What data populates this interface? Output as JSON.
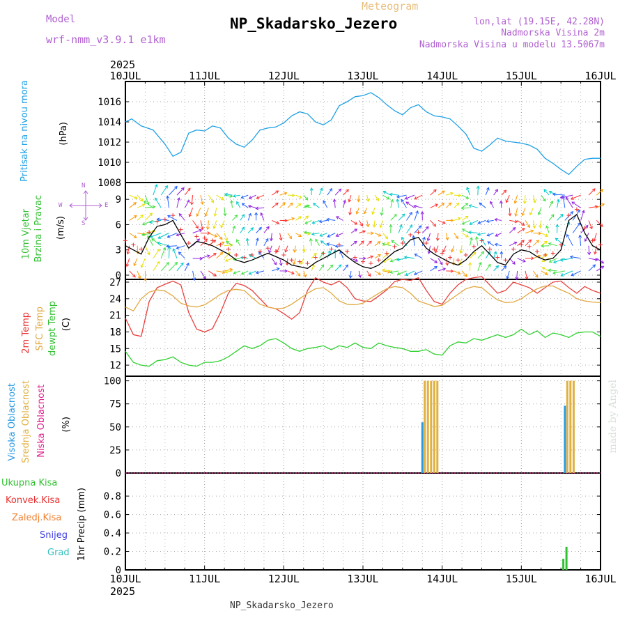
{
  "header": {
    "model_label": "Model",
    "model_name": "wrf-nmm_v3.9.1 e1km",
    "meteogram_label": "Meteogram",
    "station": "NP_Skadarsko_Jezero",
    "lonlat": "lon,lat (19.15E, 42.28N)",
    "elevation": "Nadmorska Visina 2m",
    "model_elevation": "Nadmorska Visina u modelu 13.5067m",
    "year_top": "2025",
    "year_bottom": "2025",
    "footer_station": "NP_Skadarsko_Jezero",
    "credit": "made by Angel"
  },
  "colors": {
    "pressure": "#1ea0e6",
    "temp2m": "#e8403c",
    "sfc_temp": "#e0a840",
    "dewpt": "#30d030",
    "high_cloud": "#2a9ae0",
    "mid_cloud": "#e0b040",
    "low_cloud": "#e02090",
    "total_precip": "#30c030",
    "conv_precip": "#e83030",
    "ice_precip": "#f08030",
    "snow": "#4040e0",
    "hail": "#30c0c0",
    "wind_speed": "#000000",
    "wind_gust_marker": "#e83030"
  },
  "panel_labels": {
    "pressure": {
      "title": "Pritisak na nivou mora",
      "unit": "(hPa)"
    },
    "wind": {
      "title1": "10m Vjetar",
      "title2": "Brzina i Pravac",
      "unit": "(m/s)",
      "compass": [
        "W",
        "N",
        "E",
        "S"
      ]
    },
    "temp": {
      "title1": "2m Temp",
      "title2": "SFC Temp",
      "title3": "dewpt Temp",
      "unit": "(C)"
    },
    "cloud": {
      "title1": "Visoka Oblacnost",
      "title2": "Srednja Oblacnost",
      "title3": "Niska Oblacnost",
      "unit": "(%)"
    },
    "precip": {
      "legend": [
        "Ukupna Kisa",
        "Konvek.Kisa",
        "Zaledj.Kisa",
        "Snijeg",
        "Grad"
      ],
      "unit": "1hr Precip (mm)"
    }
  },
  "chart_data": [
    {
      "type": "line",
      "name": "pressure",
      "x_tick_labels": [
        "10JUL",
        "11JUL",
        "12JUL",
        "13JUL",
        "14JUL",
        "15JUL",
        "16JUL"
      ],
      "x_range_days": [
        0,
        6
      ],
      "ylim": [
        1008,
        1018
      ],
      "y_ticks": [
        1008,
        1010,
        1012,
        1014,
        1016
      ],
      "x": [
        0,
        0.08,
        0.2,
        0.35,
        0.5,
        0.6,
        0.7,
        0.8,
        0.9,
        1.0,
        1.1,
        1.2,
        1.3,
        1.4,
        1.5,
        1.6,
        1.7,
        1.8,
        1.9,
        2.0,
        2.1,
        2.2,
        2.3,
        2.4,
        2.5,
        2.6,
        2.7,
        2.8,
        2.9,
        3.0,
        3.1,
        3.2,
        3.3,
        3.4,
        3.5,
        3.6,
        3.7,
        3.8,
        3.9,
        4.0,
        4.1,
        4.2,
        4.3,
        4.4,
        4.5,
        4.6,
        4.7,
        4.8,
        4.9,
        5.0,
        5.1,
        5.2,
        5.3,
        5.4,
        5.5,
        5.6,
        5.7,
        5.8,
        5.9,
        6.0
      ],
      "y": [
        1014.0,
        1014.3,
        1013.6,
        1013.2,
        1011.8,
        1010.6,
        1011.0,
        1012.9,
        1013.2,
        1013.1,
        1013.6,
        1013.4,
        1012.4,
        1011.8,
        1011.5,
        1012.2,
        1013.2,
        1013.4,
        1013.5,
        1013.9,
        1014.6,
        1015.0,
        1014.8,
        1014.0,
        1013.7,
        1014.2,
        1015.6,
        1016.0,
        1016.5,
        1016.6,
        1016.9,
        1016.4,
        1015.7,
        1015.1,
        1014.7,
        1015.4,
        1015.7,
        1015.0,
        1014.6,
        1014.5,
        1014.3,
        1013.6,
        1012.8,
        1011.4,
        1011.1,
        1011.7,
        1012.4,
        1012.1,
        1012.0,
        1011.9,
        1011.7,
        1011.3,
        1010.4,
        1009.9,
        1009.3,
        1008.8,
        1009.6,
        1010.3,
        1010.4,
        1010.4
      ]
    },
    {
      "type": "line",
      "name": "wind",
      "ylim": [
        -0.5,
        11
      ],
      "y_ticks": [
        0,
        3,
        6,
        9
      ],
      "x": [
        0,
        0.1,
        0.2,
        0.3,
        0.4,
        0.5,
        0.6,
        0.7,
        0.8,
        0.9,
        1.0,
        1.1,
        1.2,
        1.3,
        1.4,
        1.5,
        1.6,
        1.7,
        1.8,
        1.9,
        2.0,
        2.1,
        2.2,
        2.3,
        2.4,
        2.5,
        2.6,
        2.7,
        2.8,
        2.9,
        3.0,
        3.1,
        3.2,
        3.3,
        3.4,
        3.5,
        3.6,
        3.7,
        3.8,
        3.9,
        4.0,
        4.1,
        4.2,
        4.3,
        4.4,
        4.5,
        4.6,
        4.7,
        4.8,
        4.9,
        5.0,
        5.1,
        5.2,
        5.3,
        5.4,
        5.5,
        5.6,
        5.7,
        5.8,
        5.9,
        6.0
      ],
      "y": [
        3.5,
        3.0,
        2.5,
        4.5,
        5.8,
        6.0,
        6.5,
        4.8,
        3.2,
        4.0,
        3.8,
        3.5,
        3.0,
        2.5,
        1.8,
        1.5,
        1.8,
        2.2,
        2.6,
        2.2,
        1.8,
        1.2,
        1.0,
        0.8,
        1.5,
        2.0,
        2.5,
        3.0,
        2.2,
        1.5,
        1.0,
        0.8,
        1.2,
        2.0,
        2.8,
        3.2,
        4.2,
        4.5,
        3.2,
        2.5,
        2.0,
        1.5,
        1.2,
        1.8,
        2.8,
        3.5,
        2.5,
        1.5,
        1.2,
        2.5,
        3.0,
        2.8,
        2.2,
        1.8,
        2.0,
        3.0,
        6.5,
        7.2,
        5.0,
        3.5,
        3.0
      ]
    },
    {
      "type": "line",
      "name": "temperature",
      "ylim": [
        10,
        27.5
      ],
      "y_ticks": [
        12,
        15,
        18,
        21,
        24,
        27
      ],
      "x": [
        0,
        0.1,
        0.2,
        0.3,
        0.4,
        0.5,
        0.6,
        0.7,
        0.8,
        0.9,
        1.0,
        1.1,
        1.2,
        1.3,
        1.4,
        1.5,
        1.6,
        1.7,
        1.8,
        1.9,
        2.0,
        2.1,
        2.2,
        2.3,
        2.4,
        2.5,
        2.6,
        2.7,
        2.8,
        2.9,
        3.0,
        3.1,
        3.2,
        3.3,
        3.4,
        3.5,
        3.6,
        3.7,
        3.8,
        3.9,
        4.0,
        4.1,
        4.2,
        4.3,
        4.4,
        4.5,
        4.6,
        4.7,
        4.8,
        4.9,
        5.0,
        5.1,
        5.2,
        5.3,
        5.4,
        5.5,
        5.6,
        5.7,
        5.8,
        5.9,
        6.0
      ],
      "series": [
        {
          "name": "2m Temp",
          "values": [
            20.5,
            17.5,
            17.2,
            23.5,
            26.0,
            26.6,
            27.2,
            26.5,
            21.5,
            18.5,
            18.0,
            18.6,
            21.5,
            25.0,
            26.8,
            26.4,
            25.5,
            24.0,
            22.5,
            22.2,
            21.3,
            20.3,
            21.5,
            25.5,
            27.8,
            27.0,
            26.5,
            27.2,
            26.0,
            24.0,
            23.6,
            23.5,
            24.5,
            25.6,
            27.1,
            27.5,
            27.3,
            27.8,
            25.5,
            23.5,
            23.0,
            25.0,
            26.5,
            27.5,
            27.8,
            28.0,
            26.5,
            25.0,
            25.5,
            27.0,
            26.5,
            26.0,
            25.0,
            26.0,
            27.0,
            27.2,
            26.0,
            25.0,
            26.2,
            25.5,
            25.0
          ]
        },
        {
          "name": "SFC Temp",
          "values": [
            22.5,
            21.8,
            24.0,
            25.2,
            25.6,
            25.4,
            24.5,
            23.2,
            22.7,
            22.5,
            22.9,
            23.8,
            24.8,
            25.5,
            25.7,
            25.5,
            24.2,
            23.0,
            22.5,
            22.2,
            22.3,
            23.0,
            24.0,
            25.0,
            25.8,
            26.0,
            25.0,
            23.6,
            23.0,
            22.9,
            23.2,
            24.1,
            25.0,
            25.8,
            26.2,
            26.0,
            25.0,
            23.6,
            23.1,
            22.6,
            22.8,
            23.8,
            24.8,
            25.8,
            26.2,
            26.0,
            24.8,
            23.8,
            23.3,
            23.4,
            24.0,
            25.0,
            25.8,
            26.3,
            26.3,
            25.6,
            25.0,
            24.0,
            23.6,
            23.4,
            23.3
          ]
        },
        {
          "name": "dewpt Temp",
          "values": [
            14.5,
            12.5,
            12.0,
            11.8,
            12.8,
            13.0,
            13.5,
            12.5,
            12.0,
            11.8,
            12.5,
            12.5,
            12.8,
            13.5,
            14.5,
            15.5,
            15.0,
            15.5,
            16.5,
            16.8,
            16.0,
            15.0,
            14.5,
            15.0,
            15.2,
            15.5,
            14.8,
            15.5,
            15.2,
            16.0,
            15.2,
            15.0,
            16.0,
            15.5,
            15.2,
            15.0,
            14.5,
            14.5,
            14.8,
            14.0,
            13.8,
            15.5,
            16.2,
            16.0,
            16.8,
            16.5,
            17.0,
            17.5,
            17.0,
            17.5,
            18.5,
            17.5,
            18.2,
            17.0,
            17.8,
            17.5,
            17.0,
            17.8,
            18.0,
            18.0,
            17.2
          ]
        }
      ]
    },
    {
      "type": "bar",
      "name": "cloud",
      "ylim": [
        0,
        105
      ],
      "y_ticks": [
        0,
        25,
        50,
        75,
        100
      ],
      "series": [
        {
          "name": "Visoka Oblacnost",
          "x": [
            3.75,
            5.55
          ],
          "values": [
            55,
            73
          ]
        },
        {
          "name": "Srednja Oblacnost",
          "x": [
            3.78,
            3.82,
            3.86,
            3.9,
            3.94,
            5.58,
            5.62,
            5.66
          ],
          "values": [
            100,
            100,
            100,
            100,
            100,
            100,
            100,
            100
          ]
        },
        {
          "name": "Niska Oblacnost",
          "x": [],
          "values": []
        }
      ]
    },
    {
      "type": "bar",
      "name": "precipitation",
      "ylim": [
        0,
        1.05
      ],
      "y_ticks": [
        0,
        0.2,
        0.4,
        0.6,
        0.8
      ],
      "series": [
        {
          "name": "Ukupna Kisa",
          "x": [
            5.53,
            5.57
          ],
          "values": [
            0.12,
            0.25
          ]
        }
      ]
    }
  ]
}
